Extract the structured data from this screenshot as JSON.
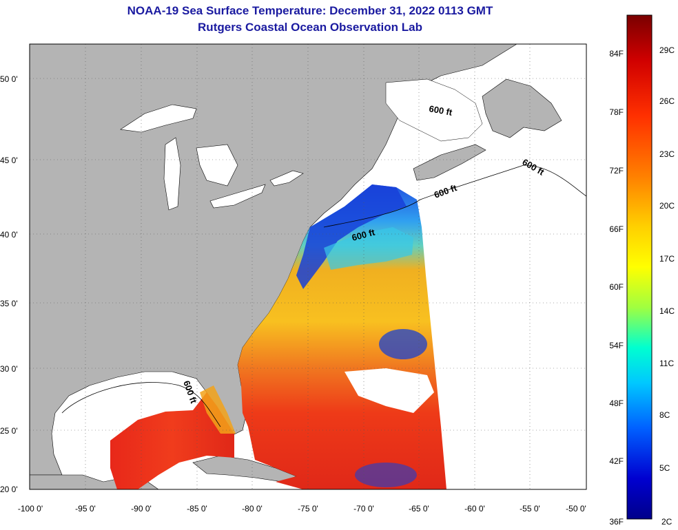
{
  "header": {
    "title": "NOAA-19 Sea Surface Temperature:  December 31, 2022 0113 GMT",
    "subtitle": "Rutgers Coastal Ocean Observation Lab"
  },
  "map": {
    "lat_labels": [
      "50 0'",
      "45 0'",
      "40 0'",
      "35 0'",
      "30 0'",
      "25 0'",
      "20 0'"
    ],
    "lon_labels": [
      "-100 0'",
      "-95 0'",
      "-90 0'",
      "-85 0'",
      "-80 0'",
      "-75 0'",
      "-70 0'",
      "-65 0'",
      "-60 0'",
      "-55 0'",
      "-50 0'"
    ],
    "contour_labels": [
      "600 ft",
      "600 ft",
      "600 ft",
      "600 ft",
      "600 ft"
    ],
    "colors": {
      "land": "#b4b4b4",
      "ocean_gap": "#ffffff",
      "gulf_warm": "#ee3322",
      "coastal_cold": "#1840d8"
    }
  },
  "colorbar": {
    "fahrenheit_labels": [
      "84F",
      "78F",
      "72F",
      "66F",
      "60F",
      "54F",
      "48F",
      "42F",
      "36F"
    ],
    "celsius_labels": [
      "29C",
      "26C",
      "23C",
      "20C",
      "17C",
      "14C",
      "11C",
      "8C",
      "5C",
      "2C"
    ],
    "stops": [
      "#7a0000",
      "#d00000",
      "#ff3000",
      "#ff8000",
      "#ffd000",
      "#ffff00",
      "#a0ff40",
      "#00ffd0",
      "#00c8ff",
      "#0060ff",
      "#0000d0",
      "#00008a"
    ]
  }
}
